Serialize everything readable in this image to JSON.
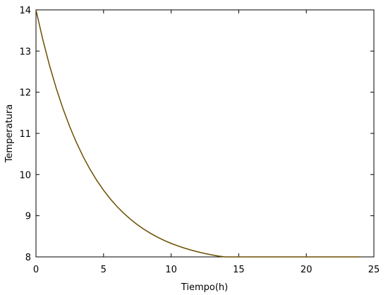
{
  "chart_data": {
    "type": "line",
    "title": "",
    "xlabel": "Tiempo(h)",
    "ylabel": "Temperatura",
    "xlim": [
      0,
      25
    ],
    "ylim": [
      8,
      14
    ],
    "x_ticks": [
      0,
      5,
      10,
      15,
      20,
      25
    ],
    "y_ticks": [
      8,
      9,
      10,
      11,
      12,
      13,
      14
    ],
    "x_tick_labels": [
      "0",
      "5",
      "10",
      "15",
      "20",
      "25"
    ],
    "y_tick_labels": [
      "8",
      "9",
      "10",
      "11",
      "12",
      "13",
      "14"
    ],
    "grid": false,
    "legend": "none",
    "line_color": "#6b4e00",
    "series": [
      {
        "x": [
          0,
          0.5,
          1,
          1.5,
          2,
          2.5,
          3,
          3.5,
          4,
          4.5,
          5,
          5.5,
          6,
          6.5,
          7,
          7.5,
          8,
          8.5,
          9,
          9.5,
          10,
          10.5,
          11,
          11.5,
          12,
          12.5,
          13,
          13.5,
          14,
          14.5,
          15,
          15.5,
          16,
          16.5,
          17,
          17.5,
          18,
          18.5,
          19,
          19.5,
          20,
          20.5,
          21,
          21.5,
          22,
          22.5,
          23,
          23.5,
          24
        ],
        "values": [
          14.0,
          13.286,
          12.653,
          12.094,
          11.599,
          11.161,
          10.773,
          10.429,
          10.126,
          9.857,
          9.619,
          9.408,
          9.222,
          9.057,
          8.911,
          8.782,
          8.668,
          8.567,
          8.477,
          8.398,
          8.328,
          8.266,
          8.212,
          8.163,
          8.12,
          8.082,
          8.049,
          8.019,
          7.993,
          7.969,
          7.949,
          7.931,
          7.915,
          7.9,
          7.888,
          7.877,
          7.867,
          7.858,
          7.85,
          7.843,
          7.837,
          7.832,
          7.827,
          7.823,
          7.82,
          7.817,
          7.814,
          7.812,
          7.81
        ]
      }
    ]
  }
}
